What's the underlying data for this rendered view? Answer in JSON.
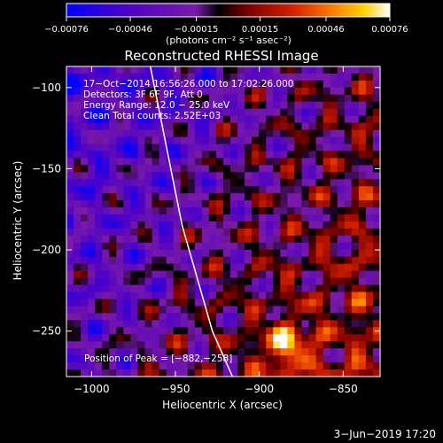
{
  "chart_data": {
    "type": "heatmap",
    "title": "Reconstructed RHESSI Image",
    "xlabel": "Heliocentric X (arcsec)",
    "ylabel": "Heliocentric Y (arcsec)",
    "xlim": [
      -1015,
      -828
    ],
    "ylim": [
      -278,
      -87
    ],
    "x_ticks": [
      -1000,
      -950,
      -900,
      -850
    ],
    "y_ticks": [
      -100,
      -150,
      -200,
      -250
    ],
    "x_tick_labels": [
      "−1000",
      "−950",
      "−900",
      "−850"
    ],
    "y_tick_labels": [
      "−100",
      "−150",
      "−200",
      "−250"
    ],
    "colorbar": {
      "ticks": [
        -0.00076,
        -0.00046,
        -0.00015,
        0.00015,
        0.00046,
        0.00076
      ],
      "tick_labels": [
        "−0.00076",
        "−0.00046",
        "−0.00015",
        "0.00015",
        "0.00046",
        "0.00076"
      ],
      "units": "(photons cm⁻² s⁻¹ asec⁻²)",
      "colors": [
        "#0000ff",
        "#4b00c8",
        "#7a1aa8",
        "#000000",
        "#7a0000",
        "#d42000",
        "#ff7a00",
        "#ffd200",
        "#ffffff"
      ]
    },
    "annotations": [
      "17−Oct−2014 16:56:26.000 to 17:02:26.000",
      "Detectors: 3F 6F 9F, Att 0",
      "Energy Range: 12.0 − 25.0 keV",
      "Clean     Total counts: 2.52E+03"
    ],
    "peak_label": "Position of Peak = [−882,−258]",
    "peak": {
      "x": -882,
      "y": -258
    },
    "limb_curve": {
      "x": [
        -965,
        -946,
        -928,
        -916
      ],
      "y": [
        -87,
        -185,
        -250,
        -278
      ]
    },
    "grid": false
  },
  "footer": {
    "date": "3−Jun−2019 17:20"
  }
}
